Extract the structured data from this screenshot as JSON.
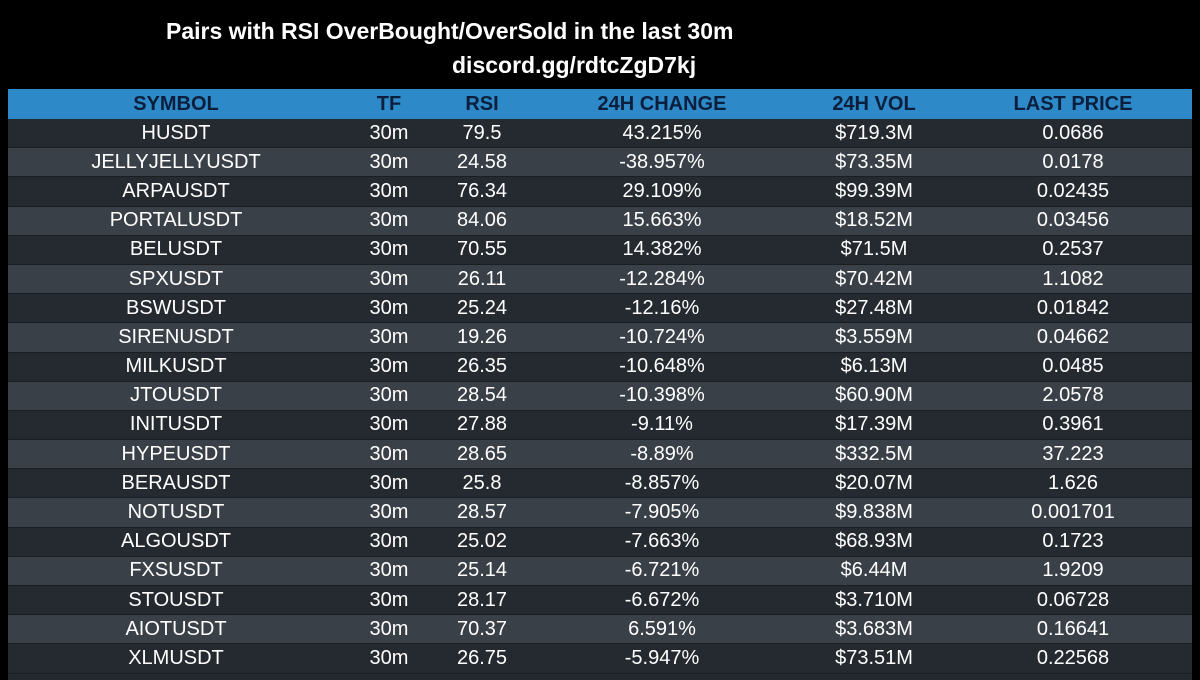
{
  "title": "Pairs with RSI OverBought/OverSold in the last 30m",
  "subtitle": "discord.gg/rdtcZgD7kj",
  "colors": {
    "background": "#000000",
    "header": "#2d89c8",
    "header_text": "#0b1f3c",
    "row_dark": "#252a30",
    "row_light": "#394047",
    "text": "#ffffff"
  },
  "table": {
    "headers": {
      "symbol": "SYMBOL",
      "tf": "TF",
      "rsi": "RSI",
      "change": "24H CHANGE",
      "vol": "24H VOL",
      "price": "LAST PRICE"
    },
    "rows": [
      {
        "symbol": "HUSDT",
        "tf": "30m",
        "rsi": "79.5",
        "change": "43.215%",
        "vol": "$719.3M",
        "price": "0.0686"
      },
      {
        "symbol": "JELLYJELLYUSDT",
        "tf": "30m",
        "rsi": "24.58",
        "change": "-38.957%",
        "vol": "$73.35M",
        "price": "0.0178"
      },
      {
        "symbol": "ARPAUSDT",
        "tf": "30m",
        "rsi": "76.34",
        "change": "29.109%",
        "vol": "$99.39M",
        "price": "0.02435"
      },
      {
        "symbol": "PORTALUSDT",
        "tf": "30m",
        "rsi": "84.06",
        "change": "15.663%",
        "vol": "$18.52M",
        "price": "0.03456"
      },
      {
        "symbol": "BELUSDT",
        "tf": "30m",
        "rsi": "70.55",
        "change": "14.382%",
        "vol": "$71.5M",
        "price": "0.2537"
      },
      {
        "symbol": "SPXUSDT",
        "tf": "30m",
        "rsi": "26.11",
        "change": "-12.284%",
        "vol": "$70.42M",
        "price": "1.1082"
      },
      {
        "symbol": "BSWUSDT",
        "tf": "30m",
        "rsi": "25.24",
        "change": "-12.16%",
        "vol": "$27.48M",
        "price": "0.01842"
      },
      {
        "symbol": "SIRENUSDT",
        "tf": "30m",
        "rsi": "19.26",
        "change": "-10.724%",
        "vol": "$3.559M",
        "price": "0.04662"
      },
      {
        "symbol": "MILKUSDT",
        "tf": "30m",
        "rsi": "26.35",
        "change": "-10.648%",
        "vol": "$6.13M",
        "price": "0.0485"
      },
      {
        "symbol": "JTOUSDT",
        "tf": "30m",
        "rsi": "28.54",
        "change": "-10.398%",
        "vol": "$60.90M",
        "price": "2.0578"
      },
      {
        "symbol": "INITUSDT",
        "tf": "30m",
        "rsi": "27.88",
        "change": "-9.11%",
        "vol": "$17.39M",
        "price": "0.3961"
      },
      {
        "symbol": "HYPEUSDT",
        "tf": "30m",
        "rsi": "28.65",
        "change": "-8.89%",
        "vol": "$332.5M",
        "price": "37.223"
      },
      {
        "symbol": "BERAUSDT",
        "tf": "30m",
        "rsi": "25.8",
        "change": "-8.857%",
        "vol": "$20.07M",
        "price": "1.626"
      },
      {
        "symbol": "NOTUSDT",
        "tf": "30m",
        "rsi": "28.57",
        "change": "-7.905%",
        "vol": "$9.838M",
        "price": "0.001701"
      },
      {
        "symbol": "ALGOUSDT",
        "tf": "30m",
        "rsi": "25.02",
        "change": "-7.663%",
        "vol": "$68.93M",
        "price": "0.1723"
      },
      {
        "symbol": "FXSUSDT",
        "tf": "30m",
        "rsi": "25.14",
        "change": "-6.721%",
        "vol": "$6.44M",
        "price": "1.9209"
      },
      {
        "symbol": "STOUSDT",
        "tf": "30m",
        "rsi": "28.17",
        "change": "-6.672%",
        "vol": "$3.710M",
        "price": "0.06728"
      },
      {
        "symbol": "AIOTUSDT",
        "tf": "30m",
        "rsi": "70.37",
        "change": "6.591%",
        "vol": "$3.683M",
        "price": "0.16641"
      },
      {
        "symbol": "XLMUSDT",
        "tf": "30m",
        "rsi": "26.75",
        "change": "-5.947%",
        "vol": "$73.51M",
        "price": "0.22568"
      }
    ]
  }
}
